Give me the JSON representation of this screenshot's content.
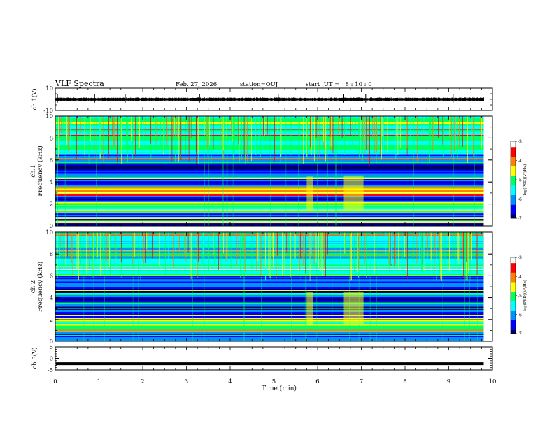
{
  "header": {
    "title": "VLF Spectra",
    "date": "Feb. 27, 2026",
    "station": "station=OUJ",
    "start_ut": "start  UT =   8 : 10 : 0"
  },
  "colors": {
    "trace": "#000000",
    "spectrogram_background": "#0000a0",
    "colormap": [
      "#000060",
      "#0000ff",
      "#0090ff",
      "#00ffff",
      "#00ff60",
      "#ffff00",
      "#ff8000",
      "#ff0000",
      "#ffffff"
    ]
  },
  "chart_data": [
    {
      "type": "line",
      "panel": "ch1-waveform",
      "ylabel": "ch.1(V)",
      "ylim": [
        -10,
        10
      ],
      "ytick_labels": [
        "10",
        "-10"
      ],
      "xlim": [
        0,
        10
      ],
      "approx_amplitude": [
        -1.5,
        1.5
      ],
      "spikes_at_min": [
        0.05,
        0.9,
        1.6,
        3.3,
        5.1,
        6.6,
        7.1,
        9.1
      ]
    },
    {
      "type": "heatmap",
      "panel": "ch1-spectrogram",
      "ylabel_lines": [
        "ch.1",
        "Frequency (kHz)"
      ],
      "ylim": [
        0,
        10
      ],
      "ytick_labels": [
        "0",
        "2",
        "4",
        "6",
        "8",
        "10"
      ],
      "xlim": [
        0,
        9.8
      ],
      "colorbar": {
        "label": "log(PSD)(V²/Hz)",
        "range": [
          -7,
          -3
        ],
        "tick_labels": [
          "-3",
          "-4",
          "-5",
          "-6",
          "-7"
        ]
      },
      "bands_khz": [
        {
          "from": 0.0,
          "to": 0.3,
          "level": -6.5
        },
        {
          "from": 0.3,
          "to": 0.5,
          "level": -4.0
        },
        {
          "from": 0.5,
          "to": 1.2,
          "level": -6.2
        },
        {
          "from": 1.2,
          "to": 2.2,
          "level": -5.0
        },
        {
          "from": 2.2,
          "to": 2.8,
          "level": -6.3
        },
        {
          "from": 2.8,
          "to": 3.6,
          "level": -4.2
        },
        {
          "from": 3.6,
          "to": 5.2,
          "level": -6.4
        },
        {
          "from": 5.2,
          "to": 5.8,
          "level": -6.9
        },
        {
          "from": 5.8,
          "to": 6.6,
          "level": -6.0
        },
        {
          "from": 6.6,
          "to": 10.0,
          "level": -5.2
        }
      ],
      "emissions": [
        {
          "t_start": 5.75,
          "t_end": 5.9,
          "f_low": 1.5,
          "f_high": 4.5
        },
        {
          "t_start": 6.6,
          "t_end": 7.05,
          "f_low": 1.5,
          "f_high": 4.6
        }
      ]
    },
    {
      "type": "heatmap",
      "panel": "ch2-spectrogram",
      "ylabel_lines": [
        "ch.2",
        "Frequency (kHz)"
      ],
      "ylim": [
        0,
        10
      ],
      "ytick_labels": [
        "0",
        "2",
        "4",
        "6",
        "8",
        "10"
      ],
      "xlim": [
        0,
        9.8
      ],
      "colorbar": {
        "label": "log(PSD)(V²/Hz)",
        "range": [
          -7,
          -3
        ],
        "tick_labels": [
          "-3",
          "-4",
          "-5",
          "-6",
          "-7"
        ]
      },
      "bands_khz": [
        {
          "from": 0.0,
          "to": 0.5,
          "level": -5.8
        },
        {
          "from": 0.5,
          "to": 1.2,
          "level": -6.2
        },
        {
          "from": 1.2,
          "to": 2.0,
          "level": -5.0
        },
        {
          "from": 2.0,
          "to": 3.0,
          "level": -6.3
        },
        {
          "from": 3.0,
          "to": 5.6,
          "level": -6.4
        },
        {
          "from": 5.6,
          "to": 6.0,
          "level": -6.0
        },
        {
          "from": 6.0,
          "to": 7.0,
          "level": -5.0
        },
        {
          "from": 7.0,
          "to": 10.0,
          "level": -5.6
        }
      ],
      "emissions": [
        {
          "t_start": 5.75,
          "t_end": 5.9,
          "f_low": 1.5,
          "f_high": 4.5
        },
        {
          "t_start": 6.6,
          "t_end": 7.05,
          "f_low": 1.5,
          "f_high": 4.5
        }
      ]
    },
    {
      "type": "line",
      "panel": "ch3-waveform",
      "ylabel": "ch.3(V)",
      "ylim": [
        -5,
        5
      ],
      "ytick_labels": [
        "5",
        "0",
        "-5"
      ],
      "xlim": [
        0,
        10
      ],
      "constant_value": -2.3
    }
  ],
  "xaxis": {
    "label": "Time (min)",
    "range": [
      0,
      10
    ],
    "tick_labels": [
      "0",
      "1",
      "2",
      "3",
      "4",
      "5",
      "6",
      "7",
      "8",
      "9",
      "10"
    ]
  }
}
